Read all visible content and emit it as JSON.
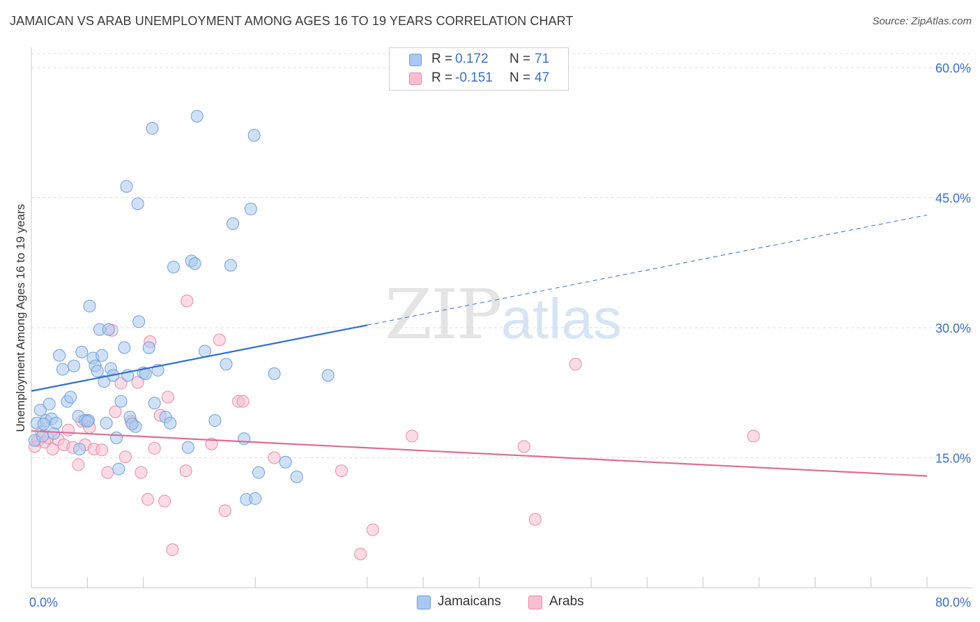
{
  "header": {
    "title": "JAMAICAN VS ARAB UNEMPLOYMENT AMONG AGES 16 TO 19 YEARS CORRELATION CHART",
    "source": "Source: ZipAtlas.com"
  },
  "legend": {
    "jamaicans": {
      "r_label": "R =",
      "r_value": "0.172",
      "n_label": "N =",
      "n_value": "71"
    },
    "arabs": {
      "r_label": "R =",
      "r_value": "-0.151",
      "n_label": "N =",
      "n_value": "47"
    }
  },
  "watermark": {
    "zip": "ZIP",
    "atlas": "atlas"
  },
  "colors": {
    "jamaicans_fill": "#a9c8f0",
    "jamaicans_stroke": "#6f9fdc",
    "jamaicans_line": "#2f6fcf",
    "arabs_fill": "#f7bfd0",
    "arabs_stroke": "#e98aa8",
    "arabs_line": "#e06b95",
    "tick_label": "#3b6fc4",
    "grid": "#dcdcdc"
  },
  "chart_data": {
    "type": "scatter",
    "title": "JAMAICAN VS ARAB UNEMPLOYMENT AMONG AGES 16 TO 19 YEARS CORRELATION CHART",
    "xlabel": "",
    "ylabel": "Unemployment Among Ages 16 to 19 years",
    "xlim": [
      0,
      80
    ],
    "ylim": [
      0,
      62
    ],
    "x_tick_labels": [
      "0.0%",
      "80.0%"
    ],
    "y_ticks": [
      15,
      30,
      45,
      60
    ],
    "y_tick_labels": [
      "15.0%",
      "30.0%",
      "45.0%",
      "60.0%"
    ],
    "grid": "horizontal dashed",
    "legend_position": "top-center",
    "series": [
      {
        "name": "Jamaicans",
        "trend": {
          "x": [
            0,
            30
          ],
          "y": [
            22.7,
            30.3
          ],
          "dashed_extension_to": [
            80,
            43.0
          ]
        },
        "points": [
          [
            0.3,
            17.0
          ],
          [
            0.5,
            19.0
          ],
          [
            0.8,
            20.5
          ],
          [
            1.0,
            17.5
          ],
          [
            1.3,
            19.3
          ],
          [
            1.6,
            21.2
          ],
          [
            1.8,
            19.5
          ],
          [
            2.0,
            17.8
          ],
          [
            2.5,
            26.8
          ],
          [
            2.8,
            25.2
          ],
          [
            3.2,
            21.5
          ],
          [
            3.5,
            22.0
          ],
          [
            3.8,
            25.6
          ],
          [
            4.2,
            19.8
          ],
          [
            4.3,
            16.0
          ],
          [
            4.5,
            27.2
          ],
          [
            4.8,
            19.3
          ],
          [
            5.1,
            19.3
          ],
          [
            5.2,
            32.5
          ],
          [
            5.5,
            26.5
          ],
          [
            5.7,
            25.6
          ],
          [
            5.9,
            25.0
          ],
          [
            6.1,
            29.8
          ],
          [
            6.3,
            26.8
          ],
          [
            6.5,
            23.8
          ],
          [
            6.7,
            19.0
          ],
          [
            6.9,
            29.8
          ],
          [
            7.1,
            25.3
          ],
          [
            7.3,
            24.5
          ],
          [
            7.6,
            17.3
          ],
          [
            7.8,
            13.7
          ],
          [
            8.0,
            21.5
          ],
          [
            8.3,
            27.7
          ],
          [
            8.5,
            46.3
          ],
          [
            8.6,
            24.5
          ],
          [
            8.8,
            19.7
          ],
          [
            9.3,
            18.6
          ],
          [
            9.5,
            44.3
          ],
          [
            9.6,
            30.7
          ],
          [
            10.0,
            24.8
          ],
          [
            10.2,
            24.7
          ],
          [
            10.5,
            27.7
          ],
          [
            10.8,
            53.0
          ],
          [
            11.0,
            21.3
          ],
          [
            11.3,
            25.1
          ],
          [
            12.0,
            19.7
          ],
          [
            12.4,
            19.0
          ],
          [
            12.7,
            37.0
          ],
          [
            14.3,
            37.7
          ],
          [
            14.6,
            37.4
          ],
          [
            14.0,
            16.2
          ],
          [
            14.8,
            54.4
          ],
          [
            15.5,
            27.3
          ],
          [
            16.4,
            19.3
          ],
          [
            17.4,
            25.8
          ],
          [
            17.8,
            37.2
          ],
          [
            18.0,
            42.0
          ],
          [
            19.0,
            17.2
          ],
          [
            19.2,
            10.2
          ],
          [
            19.6,
            43.7
          ],
          [
            19.9,
            52.2
          ],
          [
            20.0,
            10.3
          ],
          [
            20.3,
            13.3
          ],
          [
            21.7,
            24.7
          ],
          [
            22.7,
            14.5
          ],
          [
            23.7,
            12.8
          ],
          [
            26.5,
            24.5
          ],
          [
            1.1,
            18.9
          ],
          [
            2.2,
            19.0
          ],
          [
            5.0,
            19.2
          ],
          [
            9.0,
            18.9
          ]
        ]
      },
      {
        "name": "Arabs",
        "trend": {
          "x": [
            0,
            80
          ],
          "y": [
            18.1,
            12.9
          ]
        },
        "points": [
          [
            0.3,
            16.3
          ],
          [
            0.6,
            17.0
          ],
          [
            0.9,
            18.0
          ],
          [
            1.2,
            16.8
          ],
          [
            1.5,
            17.3
          ],
          [
            1.9,
            16.0
          ],
          [
            2.4,
            17.1
          ],
          [
            2.9,
            16.5
          ],
          [
            3.3,
            18.2
          ],
          [
            3.7,
            16.2
          ],
          [
            4.2,
            14.2
          ],
          [
            4.5,
            19.2
          ],
          [
            4.8,
            16.5
          ],
          [
            5.2,
            18.5
          ],
          [
            5.6,
            16.0
          ],
          [
            6.3,
            15.9
          ],
          [
            6.8,
            13.3
          ],
          [
            7.2,
            29.7
          ],
          [
            7.5,
            20.3
          ],
          [
            8.0,
            23.6
          ],
          [
            8.4,
            15.1
          ],
          [
            8.9,
            19.2
          ],
          [
            9.5,
            23.7
          ],
          [
            9.8,
            13.3
          ],
          [
            10.4,
            10.2
          ],
          [
            10.6,
            28.4
          ],
          [
            11.0,
            16.1
          ],
          [
            11.5,
            19.9
          ],
          [
            11.9,
            10.0
          ],
          [
            12.2,
            22.0
          ],
          [
            12.6,
            4.4
          ],
          [
            13.8,
            13.5
          ],
          [
            13.9,
            33.1
          ],
          [
            16.1,
            16.6
          ],
          [
            16.8,
            28.6
          ],
          [
            17.3,
            8.9
          ],
          [
            18.5,
            21.5
          ],
          [
            18.9,
            21.5
          ],
          [
            21.7,
            15.0
          ],
          [
            27.7,
            13.5
          ],
          [
            29.4,
            3.9
          ],
          [
            30.5,
            6.7
          ],
          [
            34.0,
            17.5
          ],
          [
            44.0,
            16.3
          ],
          [
            45.0,
            7.9
          ],
          [
            48.6,
            25.8
          ],
          [
            64.5,
            17.5
          ]
        ]
      }
    ]
  },
  "bottom_legend": {
    "jamaicans": "Jamaicans",
    "arabs": "Arabs"
  }
}
